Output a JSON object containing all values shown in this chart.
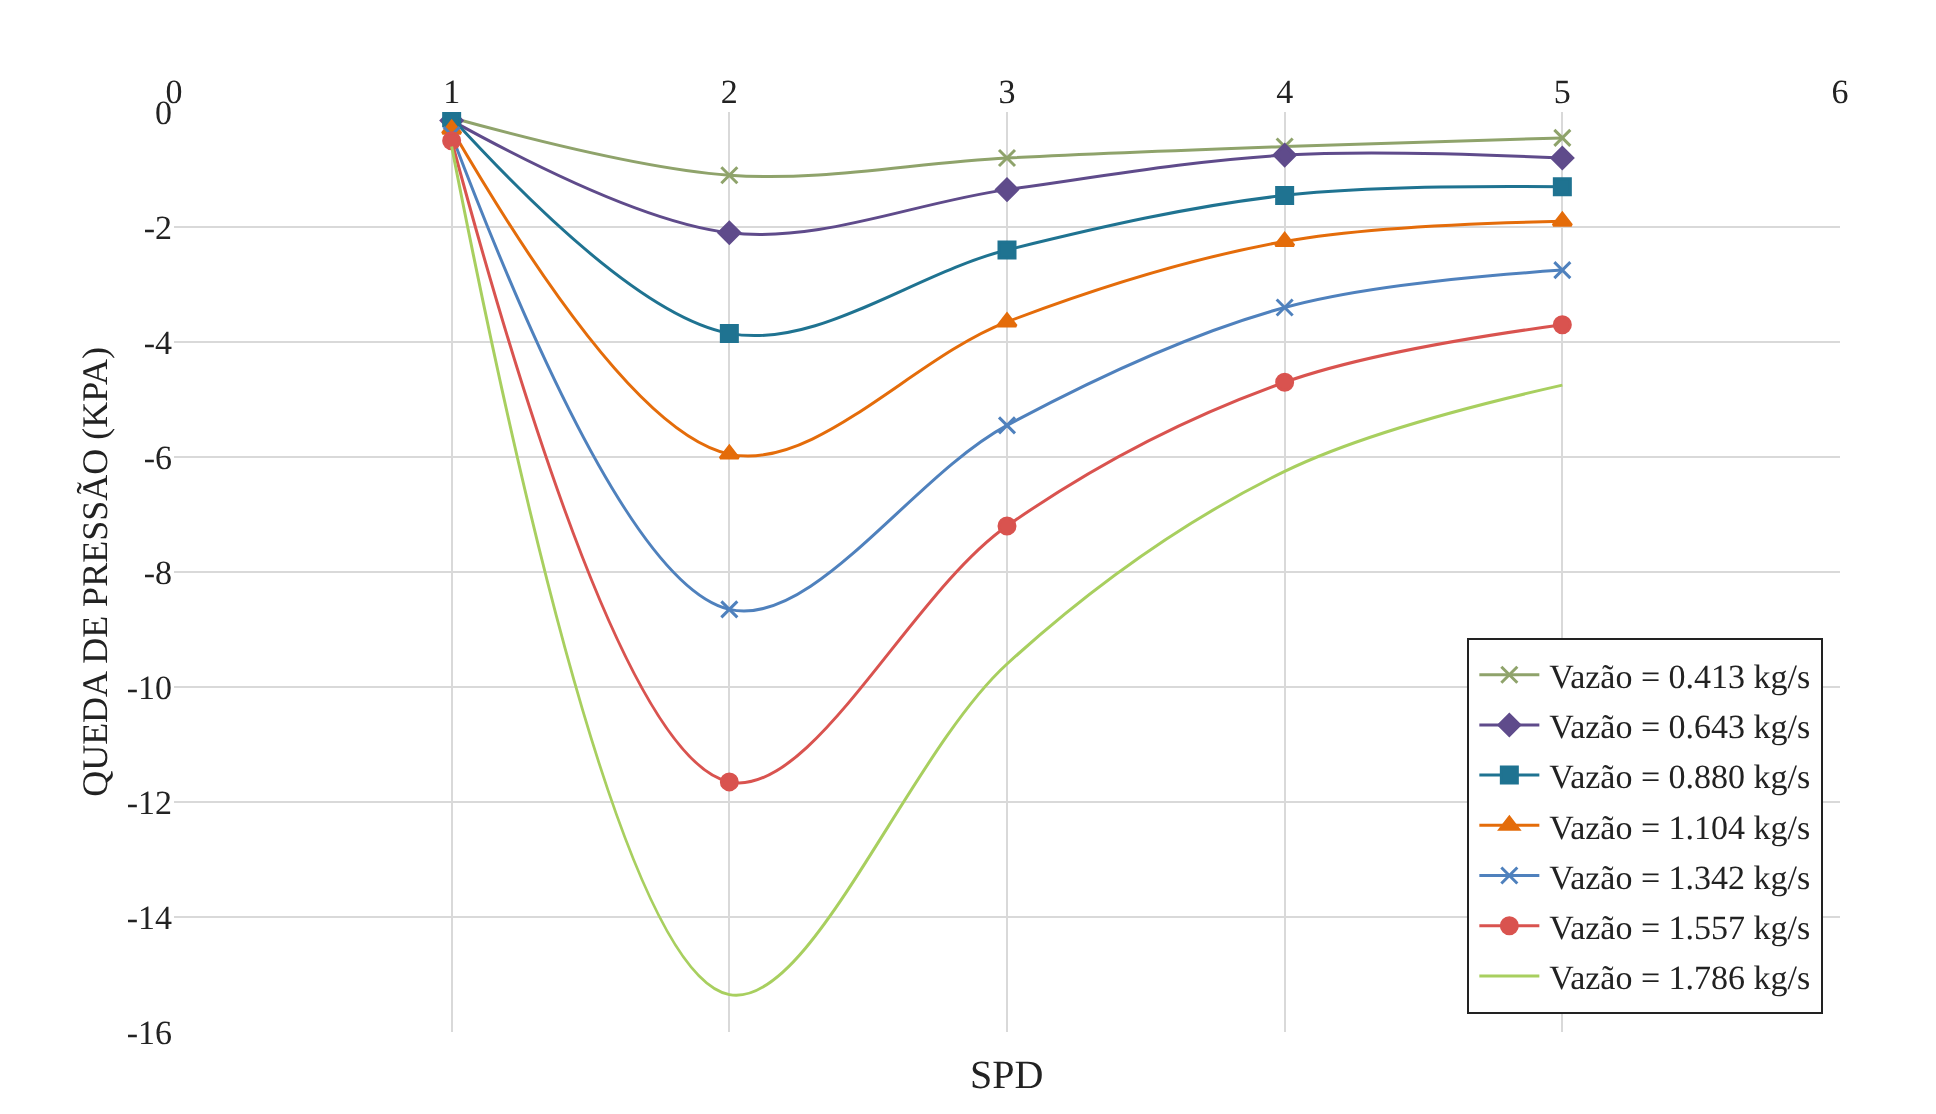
{
  "chart_data": {
    "type": "line",
    "xlabel": "SPD",
    "ylabel": "QUEDA DE PRESSÃO (KPA)",
    "x": [
      1,
      2,
      3,
      4,
      5
    ],
    "xlim": [
      0,
      6
    ],
    "xticks": [
      0,
      1,
      2,
      3,
      4,
      5,
      6
    ],
    "ylim": [
      -16,
      0
    ],
    "yticks": [
      -16,
      -14,
      -12,
      -10,
      -8,
      -6,
      -4,
      -2,
      0
    ],
    "grid": true,
    "legend": "bottom right",
    "line_style": "solid",
    "series": [
      {
        "name": "Vazão = 0.413 kg/s",
        "color": "#8fa36b",
        "marker": "cross",
        "values": [
          -0.1,
          -1.1,
          -0.8,
          -0.6,
          -0.45
        ]
      },
      {
        "name": "Vazão = 0.643 kg/s",
        "color": "#5f4b8b",
        "marker": "diamond",
        "values": [
          -0.15,
          -2.1,
          -1.35,
          -0.75,
          -0.8
        ]
      },
      {
        "name": "Vazão = 0.880 kg/s",
        "color": "#1f7391",
        "marker": "square",
        "values": [
          -0.1,
          -3.85,
          -2.4,
          -1.45,
          -1.3
        ]
      },
      {
        "name": "Vazão = 1.104 kg/s",
        "color": "#e46c0a",
        "marker": "triangle",
        "values": [
          -0.3,
          -5.95,
          -3.65,
          -2.25,
          -1.9
        ]
      },
      {
        "name": "Vazão = 1.342 kg/s",
        "color": "#4f81bd",
        "marker": "cross",
        "values": [
          -0.4,
          -8.65,
          -5.45,
          -3.4,
          -2.75
        ]
      },
      {
        "name": "Vazão = 1.557 kg/s",
        "color": "#d9534f",
        "marker": "circle",
        "values": [
          -0.5,
          -11.65,
          -7.2,
          -4.7,
          -3.7
        ]
      },
      {
        "name": "Vazão = 1.786 kg/s",
        "color": "#a8cf5f",
        "marker": "none",
        "values": [
          -0.6,
          -15.35,
          -9.6,
          -6.25,
          -4.75
        ]
      }
    ]
  }
}
